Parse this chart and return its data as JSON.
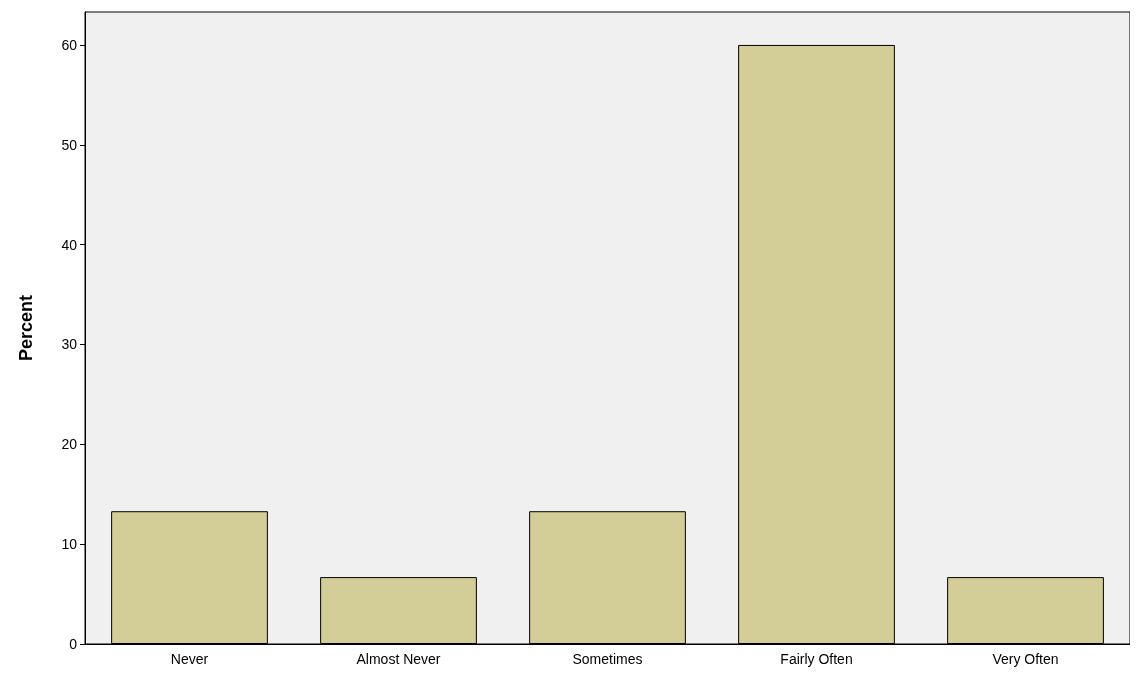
{
  "chart_data": {
    "type": "bar",
    "ylabel": "Percent",
    "categories": [
      "Never",
      "Almost Never",
      "Sometimes",
      "Fairly Often",
      "Very Often"
    ],
    "values": [
      13.3,
      6.7,
      13.3,
      60,
      6.7
    ],
    "color": "#d3ce97",
    "ylim": [
      0,
      63.3
    ],
    "yticks": [
      0,
      10,
      20,
      30,
      40,
      50,
      60
    ],
    "grid": false
  }
}
